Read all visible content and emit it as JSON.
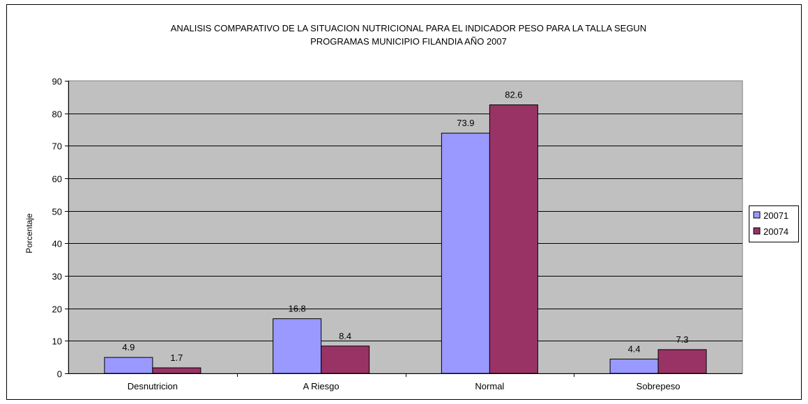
{
  "chart_data": {
    "type": "bar",
    "title_lines": [
      "ANALISIS COMPARATIVO DE LA SITUACION NUTRICIONAL PARA EL INDICADOR PESO PARA LA TALLA SEGUN",
      "PROGRAMAS MUNICIPIO FILANDIA AÑO 2007"
    ],
    "xlabel": "",
    "ylabel": "Porcentaje",
    "ylim": [
      0,
      90
    ],
    "yticks": [
      0,
      10,
      20,
      30,
      40,
      50,
      60,
      70,
      80,
      90
    ],
    "grid": true,
    "plot_background": "#C0C0C0",
    "legend_position": "right",
    "categories": [
      "Desnutricion",
      "A Riesgo",
      "Normal",
      "Sobrepeso"
    ],
    "series": [
      {
        "name": "20071",
        "color": "#9999FF",
        "values": [
          4.9,
          16.8,
          73.9,
          4.4
        ]
      },
      {
        "name": "20074",
        "color": "#993366",
        "values": [
          1.7,
          8.4,
          82.6,
          7.3
        ]
      }
    ]
  }
}
